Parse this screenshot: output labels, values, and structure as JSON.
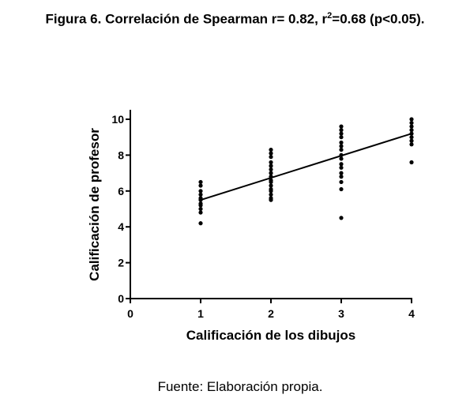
{
  "figure": {
    "title_pre": "Figura 6. Correlación de Spearman r= 0.82, r",
    "title_sup": "2",
    "title_post": "=0.68 (p<0.05).",
    "source": "Fuente: Elaboración propia."
  },
  "chart_data": {
    "type": "scatter",
    "title": "",
    "xlabel": "Calificación de los dibujos",
    "ylabel": "Calificación de profesor",
    "xlim": [
      0,
      4
    ],
    "ylim": [
      0,
      10
    ],
    "xticks": [
      0,
      1,
      2,
      3,
      4
    ],
    "yticks": [
      0,
      2,
      4,
      6,
      8,
      10
    ],
    "grid": false,
    "legend": "none",
    "points": [
      {
        "x": 1,
        "y": 6.5
      },
      {
        "x": 1,
        "y": 6.3
      },
      {
        "x": 1,
        "y": 6.0
      },
      {
        "x": 1,
        "y": 5.8
      },
      {
        "x": 1,
        "y": 5.6
      },
      {
        "x": 1,
        "y": 5.5
      },
      {
        "x": 1,
        "y": 5.3
      },
      {
        "x": 1,
        "y": 5.2
      },
      {
        "x": 1,
        "y": 5.0
      },
      {
        "x": 1,
        "y": 4.8
      },
      {
        "x": 1,
        "y": 4.2
      },
      {
        "x": 2,
        "y": 8.3
      },
      {
        "x": 2,
        "y": 8.1
      },
      {
        "x": 2,
        "y": 7.9
      },
      {
        "x": 2,
        "y": 7.6
      },
      {
        "x": 2,
        "y": 7.4
      },
      {
        "x": 2,
        "y": 7.2
      },
      {
        "x": 2,
        "y": 7.0
      },
      {
        "x": 2,
        "y": 6.8
      },
      {
        "x": 2,
        "y": 6.6
      },
      {
        "x": 2,
        "y": 6.5
      },
      {
        "x": 2,
        "y": 6.3
      },
      {
        "x": 2,
        "y": 6.1
      },
      {
        "x": 2,
        "y": 6.0
      },
      {
        "x": 2,
        "y": 5.8
      },
      {
        "x": 2,
        "y": 5.6
      },
      {
        "x": 2,
        "y": 5.5
      },
      {
        "x": 3,
        "y": 9.6
      },
      {
        "x": 3,
        "y": 9.4
      },
      {
        "x": 3,
        "y": 9.2
      },
      {
        "x": 3,
        "y": 9.0
      },
      {
        "x": 3,
        "y": 8.7
      },
      {
        "x": 3,
        "y": 8.5
      },
      {
        "x": 3,
        "y": 8.3
      },
      {
        "x": 3,
        "y": 8.0
      },
      {
        "x": 3,
        "y": 7.8
      },
      {
        "x": 3,
        "y": 7.5
      },
      {
        "x": 3,
        "y": 7.3
      },
      {
        "x": 3,
        "y": 7.0
      },
      {
        "x": 3,
        "y": 6.8
      },
      {
        "x": 3,
        "y": 6.5
      },
      {
        "x": 3,
        "y": 6.1
      },
      {
        "x": 3,
        "y": 4.5
      },
      {
        "x": 4,
        "y": 10.0
      },
      {
        "x": 4,
        "y": 9.8
      },
      {
        "x": 4,
        "y": 9.6
      },
      {
        "x": 4,
        "y": 9.4
      },
      {
        "x": 4,
        "y": 9.2
      },
      {
        "x": 4,
        "y": 9.0
      },
      {
        "x": 4,
        "y": 8.8
      },
      {
        "x": 4,
        "y": 8.6
      },
      {
        "x": 4,
        "y": 7.6
      }
    ],
    "regression_line": {
      "x": [
        1,
        4
      ],
      "y": [
        5.5,
        9.2
      ]
    }
  }
}
